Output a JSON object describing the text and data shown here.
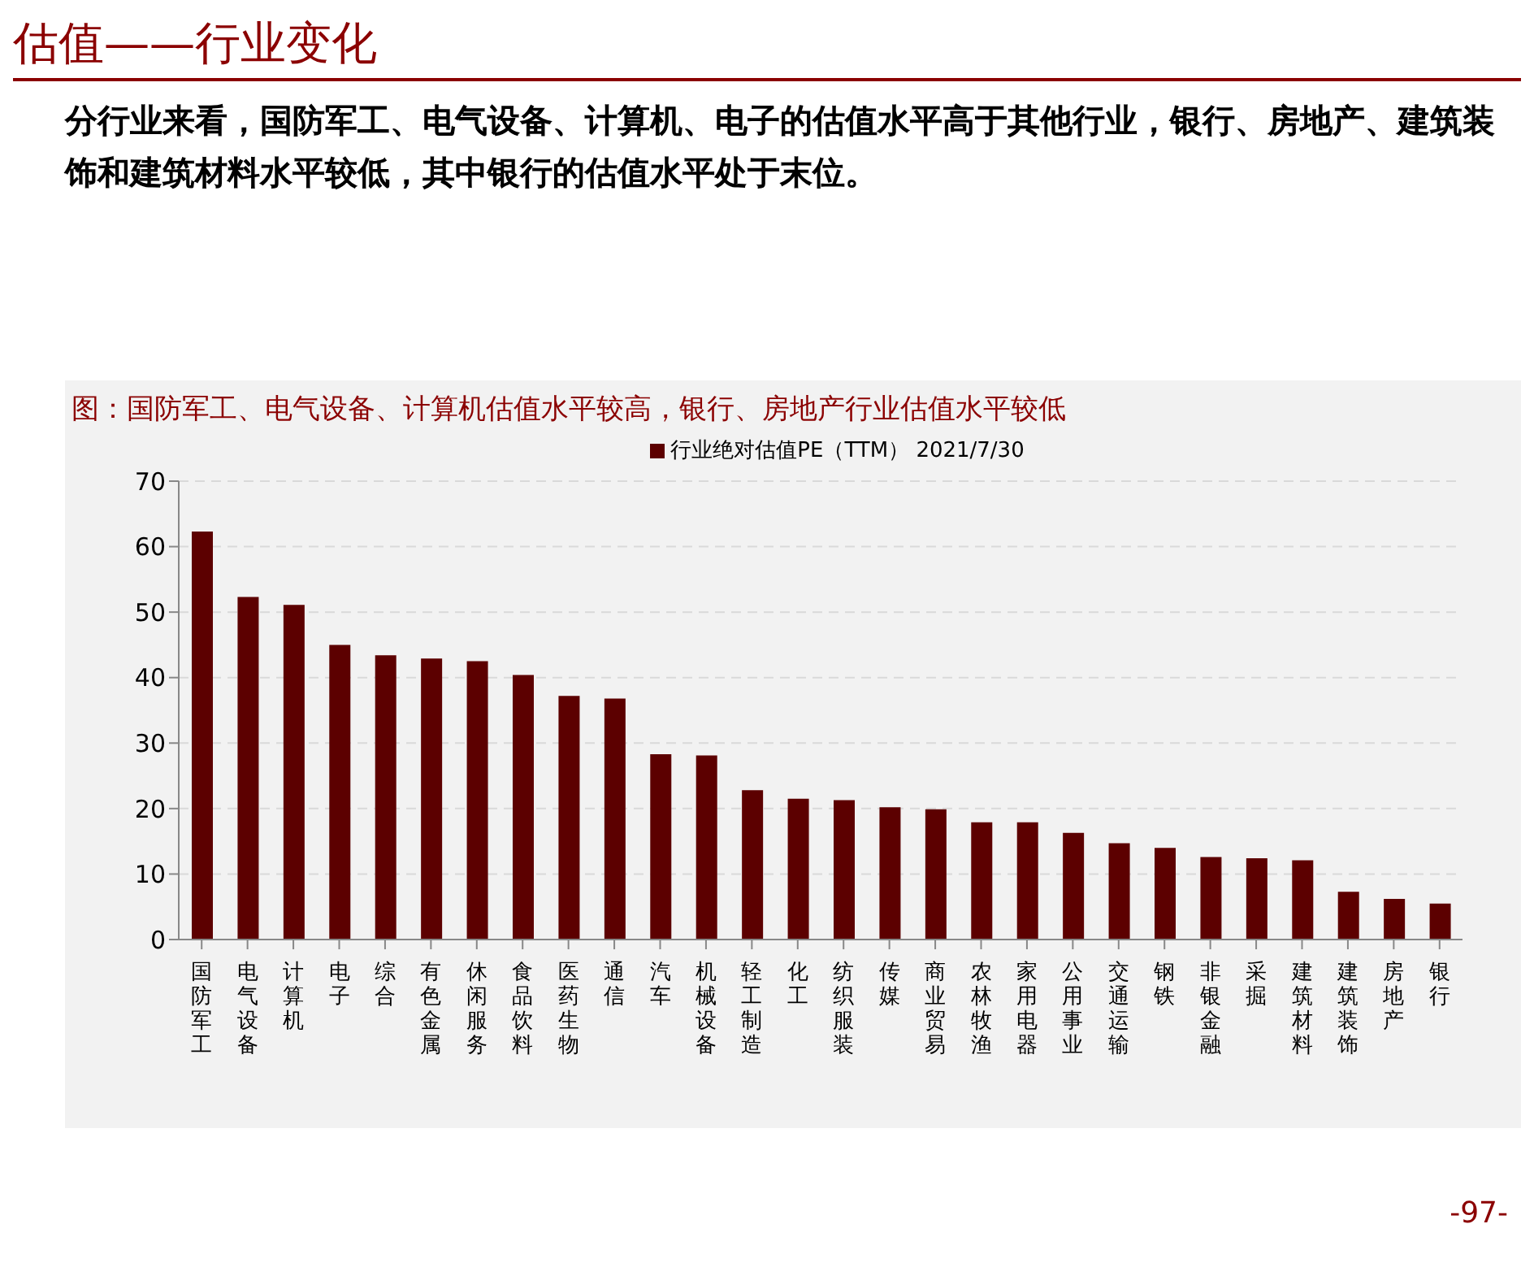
{
  "chart_data": {
    "type": "bar",
    "title": "估值——行业变化",
    "subtitle": "分行业来看，国防军工、电气设备、计算机、电子的估值水平高于其他行业，银行、房地产、建筑装饰和建筑材料水平较低，其中银行的估值水平处于末位。",
    "annotations": [
      "图：国防军工、电气设备、计算机估值水平较高，银行、房地产行业估值水平较低",
      "-97-"
    ],
    "categories": [
      "国防军工",
      "电气设备",
      "计算机",
      "电子",
      "综合",
      "有色金属",
      "休闲服务",
      "食品饮料",
      "医药生物",
      "通信",
      "汽车",
      "机械设备",
      "轻工制造",
      "化工",
      "纺织服装",
      "传媒",
      "商业贸易",
      "农林牧渔",
      "家用电器",
      "公用事业",
      "交通运输",
      "钢铁",
      "非银金融",
      "采掘",
      "建筑材料",
      "建筑装饰",
      "房地产",
      "银行"
    ],
    "series": [
      {
        "name": "行业绝对估值PE（TTM） 2021/7/30",
        "color": "#5c0000",
        "values": [
          62.3,
          52.3,
          51.1,
          45.0,
          43.4,
          42.9,
          42.5,
          40.4,
          37.2,
          36.8,
          28.3,
          28.1,
          22.8,
          21.5,
          21.3,
          20.2,
          19.9,
          17.9,
          17.9,
          16.3,
          14.7,
          14.0,
          12.6,
          12.4,
          12.1,
          7.3,
          6.2,
          5.5
        ]
      }
    ],
    "ylim": [
      0,
      70
    ],
    "yticks": [
      0,
      10,
      20,
      30,
      40,
      50,
      60,
      70
    ],
    "grid": "y",
    "legend": "top"
  }
}
